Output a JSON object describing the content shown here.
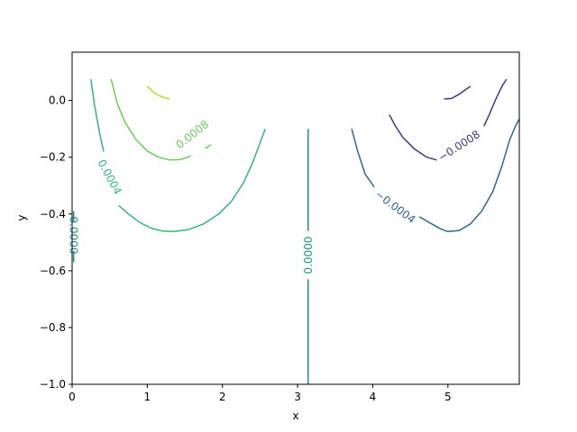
{
  "chart_data": {
    "type": "contour",
    "title": "",
    "xlabel": "x",
    "ylabel": "y",
    "xlim": [
      0,
      5.95
    ],
    "ylim": [
      -1.0,
      0.17
    ],
    "xticks": [
      0,
      1,
      2,
      3,
      4,
      5
    ],
    "yticks": [
      -1.0,
      -0.8,
      -0.6,
      -0.4,
      -0.2,
      0.0
    ],
    "xtick_labels": [
      "0",
      "1",
      "2",
      "3",
      "4",
      "5"
    ],
    "ytick_labels": [
      "−1.0",
      "−0.8",
      "−0.6",
      "−0.4",
      "−0.2",
      "0.0"
    ],
    "grid": false,
    "colors": {
      "n0008": "#443983",
      "n0004": "#31688e",
      "zero": "#21918c",
      "p0004": "#35b779",
      "p0008": "#6ccd5a",
      "p0012": "#b5de2b",
      "n0012": "#472c7a"
    },
    "levels": [
      {
        "level": 0.0012,
        "color_key": "p0012",
        "segments": [
          [
            [
              1.0,
              0.05
            ],
            [
              1.1,
              0.025
            ],
            [
              1.2,
              0.012
            ],
            [
              1.3,
              0.005
            ]
          ]
        ],
        "labels": []
      },
      {
        "level": 0.0008,
        "color_key": "p0008",
        "segments": [
          [
            [
              0.52,
              0.075
            ],
            [
              0.6,
              -0.01
            ],
            [
              0.7,
              -0.075
            ],
            [
              0.85,
              -0.138
            ],
            [
              1.0,
              -0.178
            ],
            [
              1.15,
              -0.2
            ],
            [
              1.3,
              -0.21
            ],
            [
              1.45,
              -0.208
            ],
            [
              1.58,
              -0.195
            ]
          ],
          [
            [
              1.77,
              -0.17
            ],
            [
              1.85,
              -0.155
            ]
          ]
        ],
        "labels": [
          {
            "text": "0.0008",
            "x": 1.6,
            "y": -0.12,
            "angle": -38
          }
        ]
      },
      {
        "level": 0.0004,
        "color_key": "p0004",
        "segments": [
          [
            [
              0.25,
              0.075
            ],
            [
              0.3,
              -0.02
            ],
            [
              0.37,
              -0.12
            ],
            [
              0.42,
              -0.18
            ]
          ],
          [
            [
              0.62,
              -0.37
            ],
            [
              0.75,
              -0.4
            ],
            [
              0.9,
              -0.43
            ],
            [
              1.05,
              -0.45
            ],
            [
              1.2,
              -0.46
            ],
            [
              1.35,
              -0.462
            ],
            [
              1.55,
              -0.455
            ],
            [
              1.75,
              -0.435
            ],
            [
              1.95,
              -0.4
            ],
            [
              2.12,
              -0.355
            ],
            [
              2.28,
              -0.29
            ],
            [
              2.4,
              -0.22
            ],
            [
              2.5,
              -0.15
            ],
            [
              2.57,
              -0.1
            ]
          ]
        ],
        "labels": [
          {
            "text": "0.0004",
            "x": 0.5,
            "y": -0.27,
            "angle": 62
          }
        ]
      },
      {
        "level": 0.0,
        "color_key": "zero",
        "segments": [
          [
            [
              3.14,
              -0.1
            ],
            [
              3.14,
              -0.46
            ]
          ],
          [
            [
              3.14,
              -0.63
            ],
            [
              3.14,
              -1.0
            ]
          ],
          [
            [
              0.02,
              -0.39
            ],
            [
              0.02,
              -0.43
            ]
          ],
          [
            [
              0.02,
              -0.53
            ],
            [
              0.02,
              -0.57
            ]
          ]
        ],
        "labels": [
          {
            "text": "0.0000",
            "x": 3.14,
            "y": -0.545,
            "angle": -90
          },
          {
            "text": "0.0000",
            "x": 0.02,
            "y": -0.475,
            "angle": 90
          }
        ]
      },
      {
        "level": -0.0004,
        "color_key": "n0004",
        "segments": [
          [
            [
              3.72,
              -0.1
            ],
            [
              3.8,
              -0.18
            ],
            [
              3.9,
              -0.26
            ],
            [
              4.02,
              -0.305
            ]
          ],
          [
            [
              4.62,
              -0.41
            ],
            [
              4.75,
              -0.43
            ],
            [
              4.9,
              -0.452
            ],
            [
              5.0,
              -0.462
            ],
            [
              5.15,
              -0.458
            ],
            [
              5.3,
              -0.435
            ],
            [
              5.45,
              -0.39
            ],
            [
              5.6,
              -0.32
            ],
            [
              5.72,
              -0.23
            ],
            [
              5.82,
              -0.14
            ],
            [
              5.9,
              -0.09
            ],
            [
              5.95,
              -0.065
            ]
          ]
        ],
        "labels": [
          {
            "text": "−0.0004",
            "x": 4.3,
            "y": -0.375,
            "angle": 37
          }
        ]
      },
      {
        "level": -0.0008,
        "color_key": "n0008",
        "segments": [
          [
            [
              4.22,
              -0.05
            ],
            [
              4.3,
              -0.09
            ],
            [
              4.4,
              -0.13
            ],
            [
              4.55,
              -0.17
            ],
            [
              4.72,
              -0.2
            ],
            [
              4.85,
              -0.21
            ]
          ],
          [
            [
              5.48,
              -0.09
            ],
            [
              5.55,
              -0.05
            ],
            [
              5.63,
              0.0
            ],
            [
              5.72,
              0.05
            ],
            [
              5.78,
              0.075
            ]
          ]
        ],
        "labels": [
          {
            "text": "−0.0008",
            "x": 5.15,
            "y": -0.16,
            "angle": -33
          }
        ]
      },
      {
        "level": -0.0012,
        "color_key": "n0012",
        "segments": [
          [
            [
              4.95,
              0.005
            ],
            [
              5.05,
              0.007
            ],
            [
              5.15,
              0.022
            ],
            [
              5.3,
              0.05
            ]
          ]
        ],
        "labels": []
      }
    ]
  }
}
